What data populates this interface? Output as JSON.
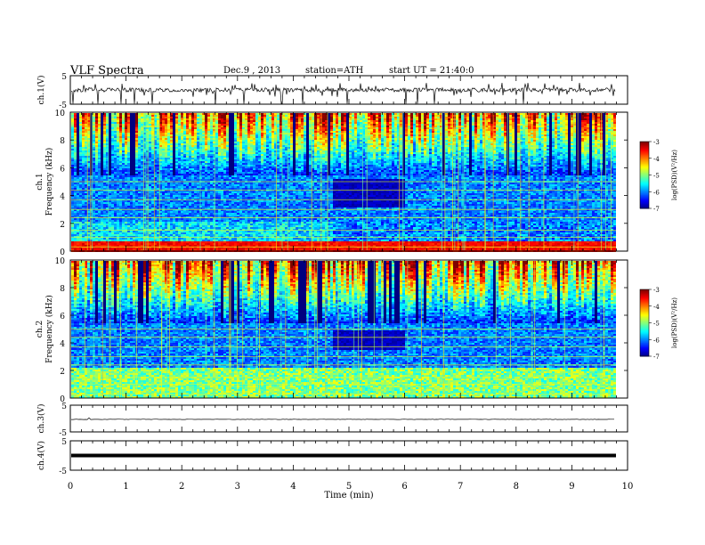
{
  "header": {
    "title": "VLF  Spectra",
    "date": "Dec.9  , 2013",
    "station": "station=ATH",
    "start": "start  UT  =   21:40:0"
  },
  "chart_data": [
    {
      "type": "line",
      "ylabel": "ch.1(V)",
      "ylim": [
        -5,
        5
      ],
      "yticks": [
        -5,
        5
      ],
      "xlim": [
        0,
        10
      ],
      "note": "broadband waveform, mostly within about -1 to 1 V with frequent spikes"
    },
    {
      "type": "heatmap",
      "ylabel_top": "ch.1",
      "ylabel": "Frequency  (kHz)",
      "ylim": [
        0,
        10
      ],
      "yticks": [
        0,
        2,
        4,
        6,
        8,
        10
      ],
      "xlim": [
        0,
        9.8
      ],
      "colorbar": {
        "label": "log(PSD)(V²/Hz)",
        "range": [
          -7,
          -3
        ],
        "ticks": [
          -3,
          -4,
          -5,
          -6,
          -7
        ]
      },
      "features": {
        "strong_band_khz": [
          0,
          0.8
        ],
        "quiet_patch": {
          "time_min": [
            4.7,
            6.0
          ],
          "freq_khz": [
            3.2,
            5.2
          ]
        },
        "lower_quiet_boundary_time_min": 4.7
      }
    },
    {
      "type": "heatmap",
      "ylabel_top": "ch.2",
      "ylabel": "Frequency  (kHz)",
      "ylim": [
        0,
        10
      ],
      "yticks": [
        0,
        2,
        4,
        6,
        8,
        10
      ],
      "xlim": [
        0,
        9.8
      ],
      "colorbar": {
        "label": "log(PSD)(V²/Hz)",
        "range": [
          -7,
          -3
        ],
        "ticks": [
          -3,
          -4,
          -5,
          -6,
          -7
        ]
      },
      "features": {
        "quiet_patch": {
          "time_min": [
            4.7,
            6.0
          ],
          "freq_khz": [
            3.5,
            5.0
          ]
        }
      }
    },
    {
      "type": "line",
      "ylabel": "ch.3(V)",
      "ylim": [
        -5,
        5
      ],
      "yticks": [
        -5,
        5
      ],
      "xlim": [
        0,
        10
      ],
      "note": "nearly flat trace near 0 V"
    },
    {
      "type": "line",
      "ylabel": "ch.4(V)",
      "ylim": [
        -5,
        5
      ],
      "yticks": [
        -5,
        5
      ],
      "xlim": [
        0,
        10
      ],
      "note": "thick flat trace near 0 V"
    }
  ],
  "xaxis": {
    "label": "Time  (min)",
    "ticks": [
      0,
      1,
      2,
      3,
      4,
      5,
      6,
      7,
      8,
      9,
      10
    ]
  }
}
